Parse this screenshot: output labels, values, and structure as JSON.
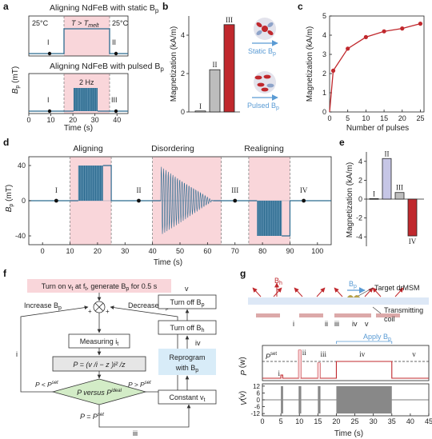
{
  "panels": {
    "a": {
      "label": "a",
      "title_static": "Aligning NdFeB with static B",
      "title_pulsed": "Aligning NdFeB with pulsed B",
      "sub": "p",
      "temp_left": "25°C",
      "temp_mid": "T > T",
      "temp_mid_sub": "melt",
      "temp_right": "25°C",
      "ylabel": "B",
      "ylabel_sub": "p",
      "ylabel_unit": " (mT)",
      "xlabel": "Time (s)",
      "freq": "2 Hz",
      "x_ticks": [
        "0",
        "10",
        "20",
        "30",
        "40"
      ],
      "markers_top": [
        "I",
        "II"
      ],
      "markers_bottom": [
        "I",
        "III"
      ]
    },
    "b": {
      "label": "b",
      "ylabel": "Magnetization (kA/m)",
      "y_ticks": [
        "0",
        "2",
        "4"
      ],
      "static_label": "Static B",
      "pulsed_label": "Pulsed B",
      "sub": "p"
    },
    "c": {
      "label": "c",
      "ylabel": "Magnetization (kA/m)",
      "xlabel": "Number of pulses",
      "y_ticks": [
        "0",
        "1",
        "2",
        "3",
        "4",
        "5"
      ],
      "x_ticks": [
        "0",
        "5",
        "10",
        "15",
        "20",
        "25"
      ]
    },
    "d": {
      "label": "d",
      "phase_aligning": "Aligning",
      "phase_disordering": "Disordering",
      "phase_realigning": "Realigning",
      "ylabel": "B",
      "ylabel_sub": "p",
      "ylabel_unit": " (mT)",
      "xlabel": "Time (s)",
      "y_ticks": [
        "40",
        "0",
        "-40"
      ],
      "x_ticks": [
        "0",
        "10",
        "20",
        "30",
        "40",
        "50",
        "60",
        "70",
        "80",
        "90",
        "100"
      ],
      "markers": [
        "I",
        "II",
        "III",
        "IV"
      ]
    },
    "e": {
      "label": "e",
      "ylabel": "Magnetization (kA/m)",
      "y_ticks": [
        "4",
        "2",
        "0",
        "-2",
        "-4"
      ]
    },
    "f": {
      "label": "f",
      "top_box": "Turn on v",
      "top_box_rest": " at f",
      "top_box_rest2": ", generate B",
      "top_box_end": " for 0.5 s",
      "increase": "Increase B",
      "decrease": "Decrease B",
      "measuring": "Measuring i",
      "formula": "P = (v /i  − z )i² /z",
      "diamond": "P  versus P",
      "diamond_sup": "ideal",
      "lt": "P < P",
      "gt": "P > P",
      "eq": "P = P",
      "set": "set",
      "roman_i": "i",
      "roman_ii": "ii",
      "roman_iii": "iii",
      "roman_iv": "iv",
      "roman_v": "v",
      "constant": "Constant v",
      "reprogram_1": "Reprogram",
      "reprogram_2": "with B",
      "turn_off_bh": "Turn off B",
      "turn_off_bp": "Turn off B",
      "sub_h": "h",
      "sub_p": "p",
      "sub_t": "t",
      "sub_r": "r"
    },
    "g": {
      "label": "g",
      "bh": "B",
      "bh_sub": "h",
      "bp": "B",
      "bp_sub": "p",
      "target": "Target drMSM",
      "coil_1": "Transmitting",
      "coil_2": "coil",
      "apply": "Apply B",
      "pr_label": "P",
      "pr_unit": " (w)",
      "vt_label": "V",
      "vt_unit": "(v)",
      "pset": "P",
      "xlabel": "Time (s)",
      "x_ticks": [
        "0",
        "5",
        "10",
        "15",
        "20",
        "25",
        "30",
        "35",
        "40",
        "45"
      ],
      "vt_ticks": [
        "12",
        "6",
        "0",
        "-6",
        "-12"
      ],
      "steps": [
        "i",
        "ii",
        "iii",
        "iv",
        "v"
      ]
    }
  },
  "colors": {
    "pink": "#f9d6da",
    "blue": "#2b6a8f",
    "red": "#c0282d",
    "gray_bar": "#bdbdbd",
    "lavender": "#c6c6e6",
    "green_diamond": "#d3ecc7",
    "blue_box": "#d8ecf8",
    "coil": "#dca9a9"
  },
  "chart_data": [
    {
      "type": "bar",
      "panel": "b",
      "categories": [
        "I",
        "II",
        "III"
      ],
      "values": [
        0.05,
        2.2,
        4.55
      ],
      "ylabel": "Magnetization (kA/m)",
      "ylim": [
        0,
        5
      ]
    },
    {
      "type": "line",
      "panel": "c",
      "x": [
        0,
        1,
        5,
        10,
        15,
        20,
        25
      ],
      "y": [
        0,
        2.15,
        3.3,
        3.9,
        4.2,
        4.35,
        4.6
      ],
      "xlabel": "Number of pulses",
      "ylabel": "Magnetization (kA/m)",
      "xlim": [
        0,
        26
      ],
      "ylim": [
        0,
        5
      ]
    },
    {
      "type": "bar",
      "panel": "e",
      "categories": [
        "I",
        "II",
        "III",
        "IV"
      ],
      "values": [
        0.05,
        4.3,
        0.7,
        -3.9
      ],
      "ylabel": "Magnetization (kA/m)",
      "ylim": [
        -5,
        5
      ]
    }
  ]
}
